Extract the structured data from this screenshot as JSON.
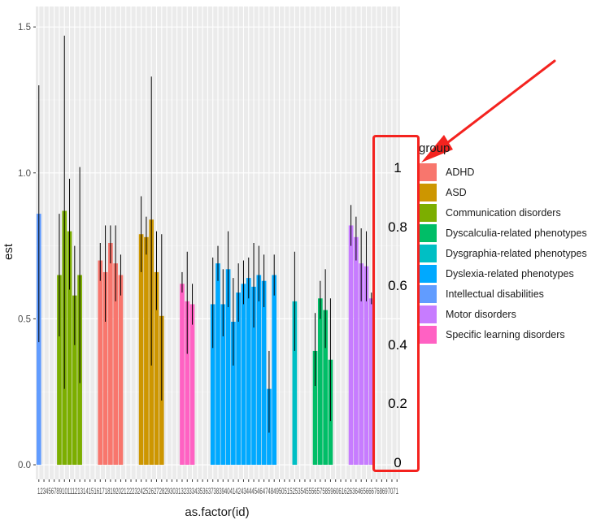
{
  "chart_data": {
    "type": "bar",
    "xlabel": "as.factor(id)",
    "ylabel": "est",
    "ylim": [
      -0.05,
      1.57
    ],
    "yticks": [
      0.0,
      0.5,
      1.0,
      1.5
    ],
    "ytick_labels": [
      "0.0",
      "0.5",
      "1.0",
      "1.5"
    ],
    "xtick_text": "1 2 3 4 5 6 7 8 9 10 11 12 13 14 15 16 17 18 19 20 21 22 23 24 25 26 27 28 29 30 31 32 33 34 35 36 37 38 39 40 41 42 43 44 45 46 47 48 49 50 51 52 53 54 55 56 57 58 59 60 61 62 63 64 65 66 67 68 69 70 71",
    "n_categories": 71,
    "grid": true,
    "legend_placement": "right",
    "bars": [
      {
        "id": 1,
        "group": "Intellectual disabilities",
        "est": 0.86,
        "lo": 0.42,
        "hi": 1.3
      },
      {
        "id": 5,
        "group": "Communication disorders",
        "est": 0.65,
        "lo": 0.44,
        "hi": 0.86
      },
      {
        "id": 6,
        "group": "Communication disorders",
        "est": 0.87,
        "lo": 0.26,
        "hi": 1.47
      },
      {
        "id": 7,
        "group": "Communication disorders",
        "est": 0.8,
        "lo": 0.6,
        "hi": 0.98
      },
      {
        "id": 8,
        "group": "Communication disorders",
        "est": 0.58,
        "lo": 0.41,
        "hi": 0.75
      },
      {
        "id": 9,
        "group": "Communication disorders",
        "est": 0.65,
        "lo": 0.28,
        "hi": 1.02
      },
      {
        "id": 13,
        "group": "ADHD",
        "est": 0.7,
        "lo": 0.63,
        "hi": 0.76
      },
      {
        "id": 14,
        "group": "ADHD",
        "est": 0.66,
        "lo": 0.49,
        "hi": 0.82
      },
      {
        "id": 15,
        "group": "ADHD",
        "est": 0.76,
        "lo": 0.69,
        "hi": 0.82
      },
      {
        "id": 16,
        "group": "ADHD",
        "est": 0.69,
        "lo": 0.56,
        "hi": 0.82
      },
      {
        "id": 17,
        "group": "ADHD",
        "est": 0.65,
        "lo": 0.58,
        "hi": 0.72
      },
      {
        "id": 21,
        "group": "ASD",
        "est": 0.79,
        "lo": 0.66,
        "hi": 0.92
      },
      {
        "id": 22,
        "group": "ASD",
        "est": 0.78,
        "lo": 0.72,
        "hi": 0.85
      },
      {
        "id": 23,
        "group": "ASD",
        "est": 0.84,
        "lo": 0.34,
        "hi": 1.33
      },
      {
        "id": 24,
        "group": "ASD",
        "est": 0.66,
        "lo": 0.53,
        "hi": 0.8
      },
      {
        "id": 25,
        "group": "ASD",
        "est": 0.51,
        "lo": 0.22,
        "hi": 0.79
      },
      {
        "id": 29,
        "group": "Specific learning disorders",
        "est": 0.62,
        "lo": 0.59,
        "hi": 0.66
      },
      {
        "id": 30,
        "group": "Specific learning disorders",
        "est": 0.56,
        "lo": 0.38,
        "hi": 0.73
      },
      {
        "id": 31,
        "group": "Specific learning disorders",
        "est": 0.55,
        "lo": 0.48,
        "hi": 0.62
      },
      {
        "id": 35,
        "group": "Dyslexia-related phenotypes",
        "est": 0.55,
        "lo": 0.4,
        "hi": 0.71
      },
      {
        "id": 36,
        "group": "Dyslexia-related phenotypes",
        "est": 0.69,
        "lo": 0.63,
        "hi": 0.75
      },
      {
        "id": 37,
        "group": "Dyslexia-related phenotypes",
        "est": 0.55,
        "lo": 0.44,
        "hi": 0.67
      },
      {
        "id": 38,
        "group": "Dyslexia-related phenotypes",
        "est": 0.67,
        "lo": 0.54,
        "hi": 0.8
      },
      {
        "id": 39,
        "group": "Dyslexia-related phenotypes",
        "est": 0.49,
        "lo": 0.34,
        "hi": 0.64
      },
      {
        "id": 40,
        "group": "Dyslexia-related phenotypes",
        "est": 0.59,
        "lo": 0.49,
        "hi": 0.69
      },
      {
        "id": 41,
        "group": "Dyslexia-related phenotypes",
        "est": 0.62,
        "lo": 0.55,
        "hi": 0.7
      },
      {
        "id": 42,
        "group": "Dyslexia-related phenotypes",
        "est": 0.64,
        "lo": 0.57,
        "hi": 0.71
      },
      {
        "id": 43,
        "group": "Dyslexia-related phenotypes",
        "est": 0.61,
        "lo": 0.47,
        "hi": 0.76
      },
      {
        "id": 44,
        "group": "Dyslexia-related phenotypes",
        "est": 0.65,
        "lo": 0.56,
        "hi": 0.75
      },
      {
        "id": 45,
        "group": "Dyslexia-related phenotypes",
        "est": 0.63,
        "lo": 0.54,
        "hi": 0.72
      },
      {
        "id": 46,
        "group": "Dyslexia-related phenotypes",
        "est": 0.26,
        "lo": 0.11,
        "hi": 0.39
      },
      {
        "id": 47,
        "group": "Dyslexia-related phenotypes",
        "est": 0.65,
        "lo": 0.58,
        "hi": 0.72
      },
      {
        "id": 51,
        "group": "Dysgraphia-related phenotypes",
        "est": 0.56,
        "lo": 0.39,
        "hi": 0.73
      },
      {
        "id": 55,
        "group": "Dyscalculia-related phenotypes",
        "est": 0.39,
        "lo": 0.27,
        "hi": 0.52
      },
      {
        "id": 56,
        "group": "Dyscalculia-related phenotypes",
        "est": 0.57,
        "lo": 0.5,
        "hi": 0.63
      },
      {
        "id": 57,
        "group": "Dyscalculia-related phenotypes",
        "est": 0.53,
        "lo": 0.4,
        "hi": 0.67
      },
      {
        "id": 58,
        "group": "Dyscalculia-related phenotypes",
        "est": 0.36,
        "lo": 0.15,
        "hi": 0.57
      },
      {
        "id": 62,
        "group": "Motor disorders",
        "est": 0.82,
        "lo": 0.75,
        "hi": 0.89
      },
      {
        "id": 63,
        "group": "Motor disorders",
        "est": 0.78,
        "lo": 0.7,
        "hi": 0.85
      },
      {
        "id": 64,
        "group": "Motor disorders",
        "est": 0.69,
        "lo": 0.56,
        "hi": 0.81
      },
      {
        "id": 65,
        "group": "Motor disorders",
        "est": 0.68,
        "lo": 0.56,
        "hi": 0.8
      },
      {
        "id": 66,
        "group": "Motor disorders",
        "est": 0.57,
        "lo": 0.55,
        "hi": 0.59
      }
    ]
  },
  "legend": {
    "title": "group",
    "items": [
      {
        "label": "ADHD",
        "color": "#F8766D"
      },
      {
        "label": "ASD",
        "color": "#CD9600"
      },
      {
        "label": "Communication disorders",
        "color": "#7CAE00"
      },
      {
        "label": "Dyscalculia-related phenotypes",
        "color": "#00BE67"
      },
      {
        "label": "Dysgraphia-related phenotypes",
        "color": "#00BFC4"
      },
      {
        "label": "Dyslexia-related phenotypes",
        "color": "#00A9FF"
      },
      {
        "label": "Intellectual disabilities",
        "color": "#619CFF"
      },
      {
        "label": "Motor disorders",
        "color": "#C77CFF"
      },
      {
        "label": "Specific learning disorders",
        "color": "#FF61C3"
      }
    ]
  },
  "annotation": {
    "scale_labels": [
      "1",
      "0.8",
      "0.6",
      "0.4",
      "0.2",
      "0"
    ],
    "box_color": "#F4231F",
    "arrow_color": "#F4231F"
  }
}
